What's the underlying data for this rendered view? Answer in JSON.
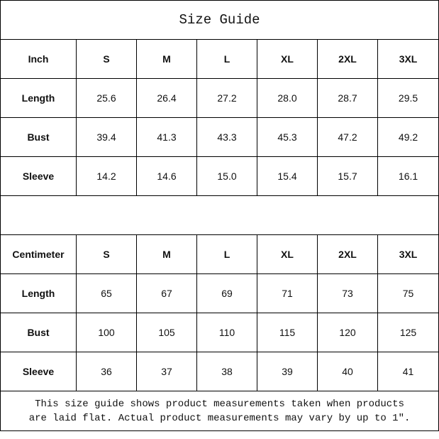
{
  "title": "Size Guide",
  "sizes": [
    "S",
    "M",
    "L",
    "XL",
    "2XL",
    "3XL"
  ],
  "inch": {
    "label": "Inch",
    "rows": [
      {
        "label": "Length",
        "values": [
          "25.6",
          "26.4",
          "27.2",
          "28.0",
          "28.7",
          "29.5"
        ]
      },
      {
        "label": "Bust",
        "values": [
          "39.4",
          "41.3",
          "43.3",
          "45.3",
          "47.2",
          "49.2"
        ]
      },
      {
        "label": "Sleeve",
        "values": [
          "14.2",
          "14.6",
          "15.0",
          "15.4",
          "15.7",
          "16.1"
        ]
      }
    ]
  },
  "centimeter": {
    "label": "Centimeter",
    "rows": [
      {
        "label": "Length",
        "values": [
          "65",
          "67",
          "69",
          "71",
          "73",
          "75"
        ]
      },
      {
        "label": "Bust",
        "values": [
          "100",
          "105",
          "110",
          "115",
          "120",
          "125"
        ]
      },
      {
        "label": "Sleeve",
        "values": [
          "36",
          "37",
          "38",
          "39",
          "40",
          "41"
        ]
      }
    ]
  },
  "note": {
    "line1": "This size guide shows product measurements taken when products",
    "line2": "are laid flat. Actual product measurements may vary by up to 1″."
  }
}
